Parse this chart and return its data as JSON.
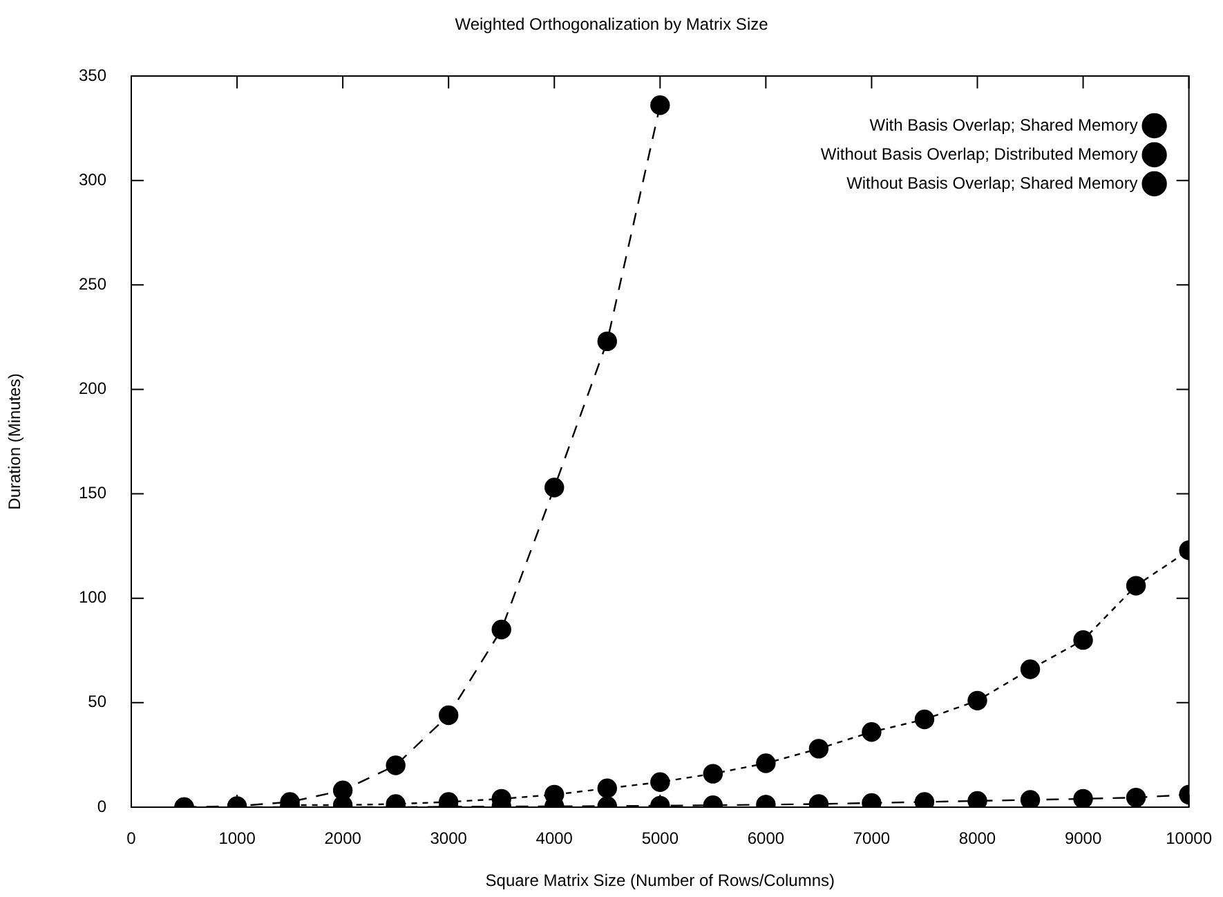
{
  "chart_data": {
    "type": "line",
    "title": "Weighted Orthogonalization by Matrix Size",
    "xlabel": "Square Matrix Size (Number of Rows/Columns)",
    "ylabel": "Duration (Minutes)",
    "xlim": [
      0,
      10000
    ],
    "xticks": [
      0,
      1000,
      2000,
      3000,
      4000,
      5000,
      6000,
      7000,
      8000,
      9000,
      10000
    ],
    "ylim": [
      0,
      350
    ],
    "yticks": [
      0,
      50,
      100,
      150,
      200,
      250,
      300,
      350
    ],
    "grid": false,
    "legend": "top right",
    "marker": "circle",
    "series": [
      {
        "name": "With Basis Overlap; Shared Memory",
        "color": "#000000",
        "line_style": "dashed",
        "x": [
          500,
          1000,
          1500,
          2000,
          2500,
          3000,
          3500,
          4000,
          4500,
          5000
        ],
        "values": [
          0,
          0.5,
          2.5,
          8,
          20,
          44,
          85,
          153,
          223,
          336
        ]
      },
      {
        "name": "Without Basis Overlap; Distributed Memory",
        "color": "#000000",
        "line_style": "dotted",
        "x": [
          1500,
          2000,
          2500,
          3000,
          3500,
          4000,
          4500,
          5000,
          5500,
          6000,
          6500,
          7000,
          7500,
          8000,
          8500,
          9000,
          9500,
          10000
        ],
        "values": [
          1,
          1,
          1.5,
          2.5,
          4,
          6,
          9,
          12,
          16,
          21,
          28,
          36,
          42,
          51,
          66,
          80,
          106,
          123
        ]
      },
      {
        "name": "Without Basis Overlap; Shared Memory",
        "color": "#000000",
        "line_style": "dashed",
        "x": [
          500,
          1000,
          1500,
          2000,
          2500,
          3000,
          3500,
          4000,
          4500,
          5000,
          5500,
          6000,
          6500,
          7000,
          7500,
          8000,
          8500,
          9000,
          9500,
          10000
        ],
        "values": [
          0,
          0,
          0,
          0,
          0,
          0.2,
          0.3,
          0.4,
          0.5,
          0.7,
          0.9,
          1.2,
          1.5,
          2,
          2.5,
          3,
          3.5,
          4,
          4.6,
          6
        ]
      }
    ]
  }
}
